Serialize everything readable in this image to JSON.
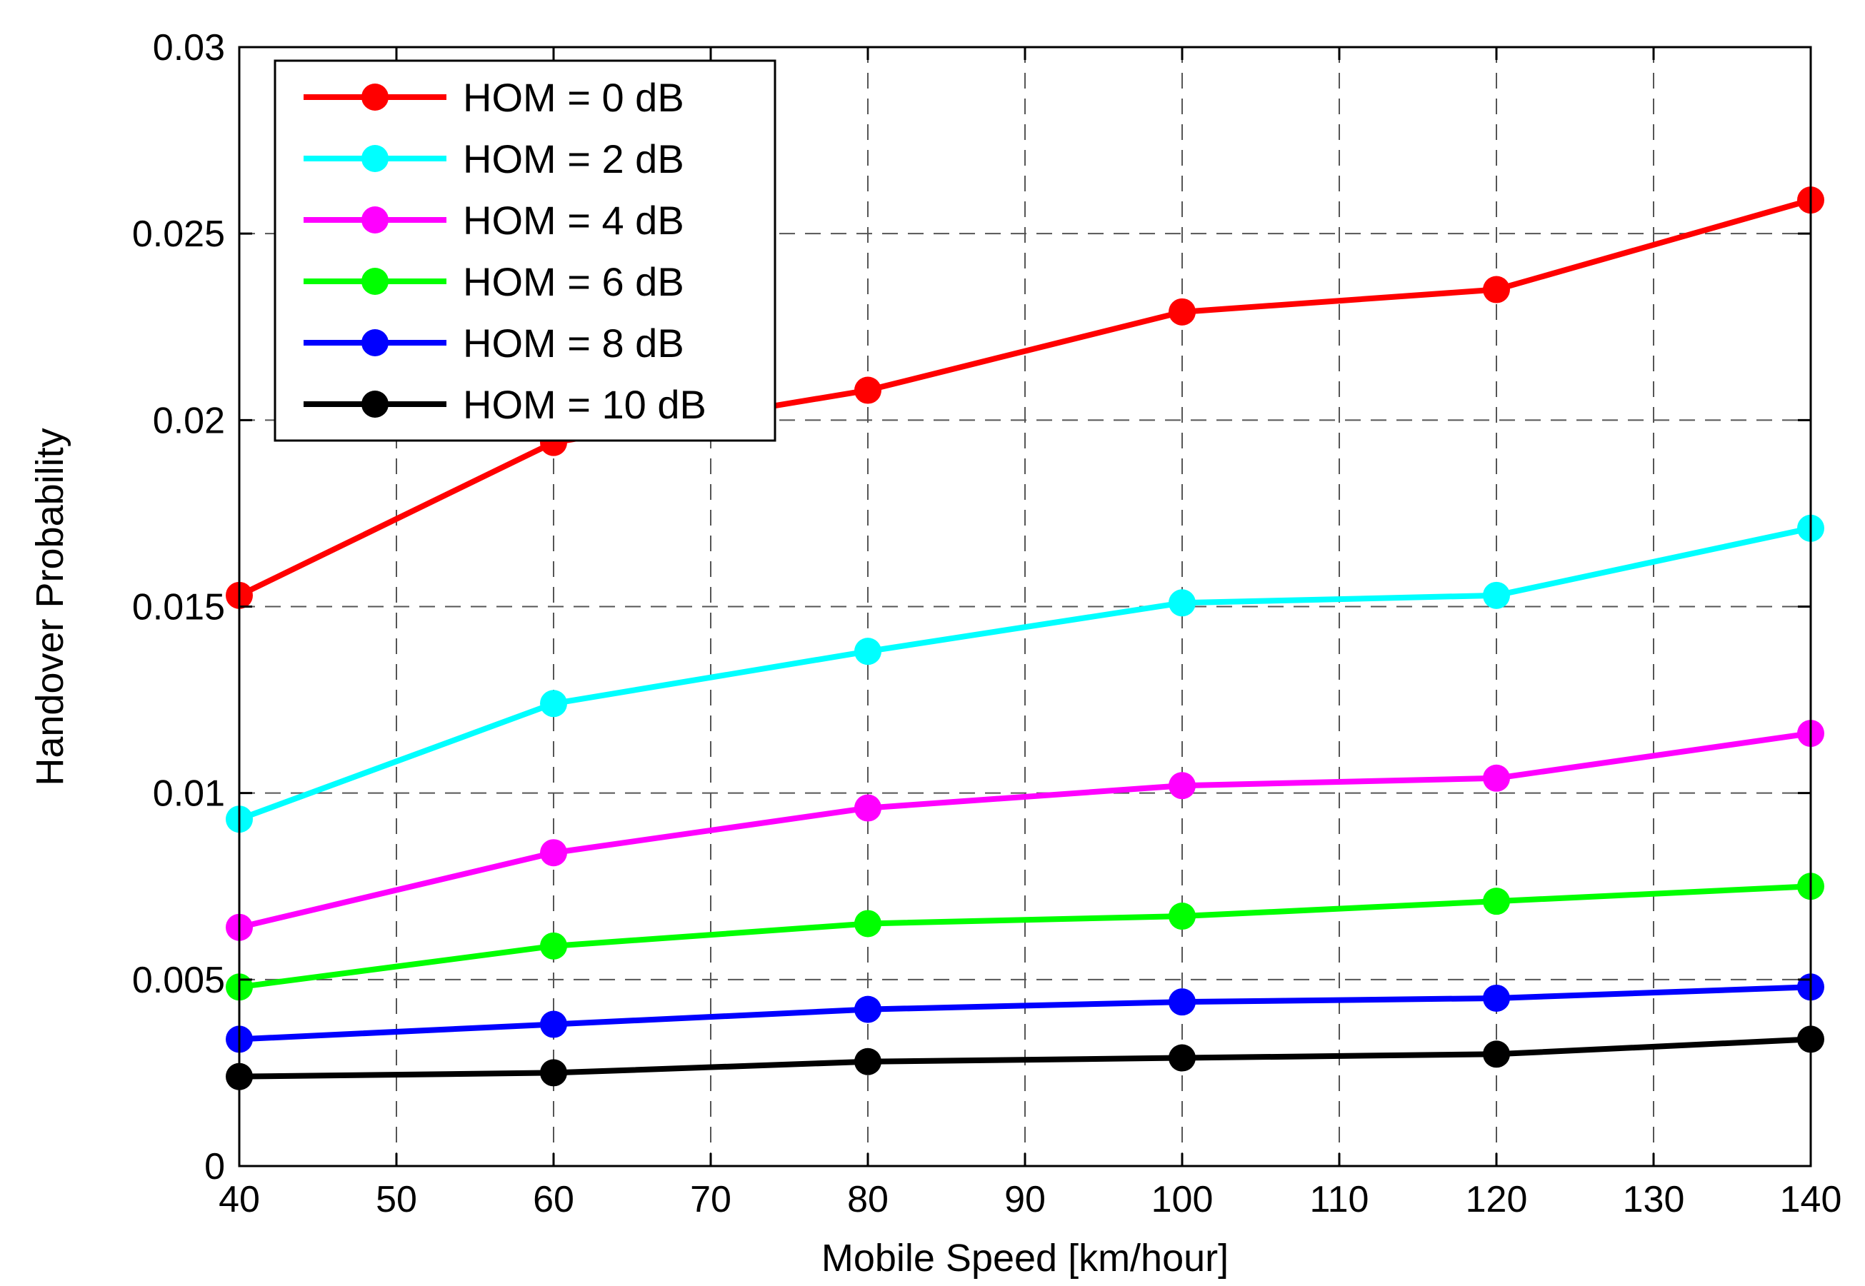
{
  "chart_data": {
    "type": "line",
    "title": "",
    "xlabel": "Mobile Speed [km/hour]",
    "ylabel": "Handover Probability",
    "xlim": [
      40,
      140
    ],
    "ylim": [
      0,
      0.03
    ],
    "grid": true,
    "legend_position": "top-left",
    "x_ticks": [
      "40",
      "50",
      "60",
      "70",
      "80",
      "90",
      "100",
      "110",
      "120",
      "130",
      "140"
    ],
    "x_tick_values": [
      40,
      50,
      60,
      70,
      80,
      90,
      100,
      110,
      120,
      130,
      140
    ],
    "y_ticks": [
      "0",
      "0.005",
      "0.01",
      "0.015",
      "0.02",
      "0.025",
      "0.03"
    ],
    "y_tick_values": [
      0,
      0.005,
      0.01,
      0.015,
      0.02,
      0.025,
      0.03
    ],
    "x": [
      40,
      60,
      80,
      100,
      120,
      140
    ],
    "series": [
      {
        "name": "HOM = 0 dB",
        "color": "#ff0000",
        "values": [
          0.0153,
          0.0194,
          0.0208,
          0.0229,
          0.0235,
          0.0259
        ]
      },
      {
        "name": "HOM = 2 dB",
        "color": "#00ffff",
        "values": [
          0.0093,
          0.0124,
          0.0138,
          0.0151,
          0.0153,
          0.0171
        ]
      },
      {
        "name": "HOM = 4 dB",
        "color": "#ff00ff",
        "values": [
          0.0064,
          0.0084,
          0.0096,
          0.0102,
          0.0104,
          0.0116
        ]
      },
      {
        "name": "HOM = 6 dB",
        "color": "#00ff00",
        "values": [
          0.0048,
          0.0059,
          0.0065,
          0.0067,
          0.0071,
          0.0075
        ]
      },
      {
        "name": "HOM = 8 dB",
        "color": "#0000ff",
        "values": [
          0.0034,
          0.0038,
          0.0042,
          0.0044,
          0.0045,
          0.0048
        ]
      },
      {
        "name": "HOM = 10 dB",
        "color": "#000000",
        "values": [
          0.0024,
          0.0025,
          0.0028,
          0.0029,
          0.003,
          0.0034
        ]
      }
    ]
  }
}
